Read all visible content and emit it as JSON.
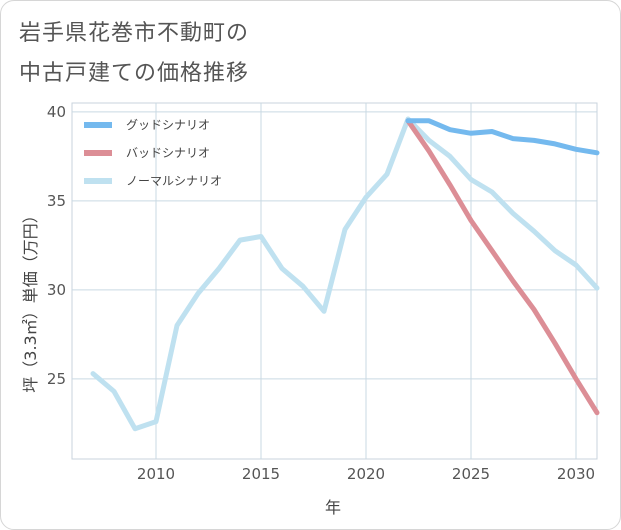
{
  "title_lines": [
    "岩手県花巻市不動町の",
    "中古戸建ての価格推移"
  ],
  "chart_data": {
    "type": "line",
    "title": "岩手県花巻市不動町の中古戸建ての価格推移",
    "xlabel": "年",
    "ylabel": "坪（3.3㎡）単価（万円）",
    "xlim": [
      2006,
      2031
    ],
    "ylim": [
      20.5,
      40.5
    ],
    "xticks": [
      2010,
      2015,
      2020,
      2025,
      2030
    ],
    "yticks": [
      25,
      30,
      35,
      40
    ],
    "grid": true,
    "legend_position": "top-left",
    "series": [
      {
        "name": "グッドシナリオ",
        "color": "#74b9ee",
        "x": [
          2022,
          2023,
          2024,
          2025,
          2026,
          2027,
          2028,
          2029,
          2030,
          2031
        ],
        "y": [
          39.5,
          39.5,
          39.0,
          38.8,
          38.9,
          38.5,
          38.4,
          38.2,
          37.9,
          37.7
        ]
      },
      {
        "name": "バッドシナリオ",
        "color": "#dc8e96",
        "x": [
          2022,
          2023,
          2024,
          2025,
          2026,
          2027,
          2028,
          2029,
          2030,
          2031
        ],
        "y": [
          39.5,
          37.8,
          35.9,
          33.9,
          32.2,
          30.5,
          28.9,
          27.0,
          25.0,
          23.1
        ]
      },
      {
        "name": "ノーマルシナリオ",
        "color": "#bfe1f0",
        "x": [
          2007,
          2008,
          2009,
          2010,
          2011,
          2012,
          2013,
          2014,
          2015,
          2016,
          2017,
          2018,
          2019,
          2020,
          2021,
          2022,
          2023,
          2024,
          2025,
          2026,
          2027,
          2028,
          2029,
          2030,
          2031
        ],
        "y": [
          25.3,
          24.3,
          22.2,
          22.6,
          28.0,
          29.8,
          31.2,
          32.8,
          33.0,
          31.2,
          30.2,
          28.8,
          33.4,
          35.2,
          36.5,
          39.6,
          38.4,
          37.5,
          36.2,
          35.5,
          34.3,
          33.3,
          32.2,
          31.4,
          30.1
        ]
      }
    ]
  }
}
